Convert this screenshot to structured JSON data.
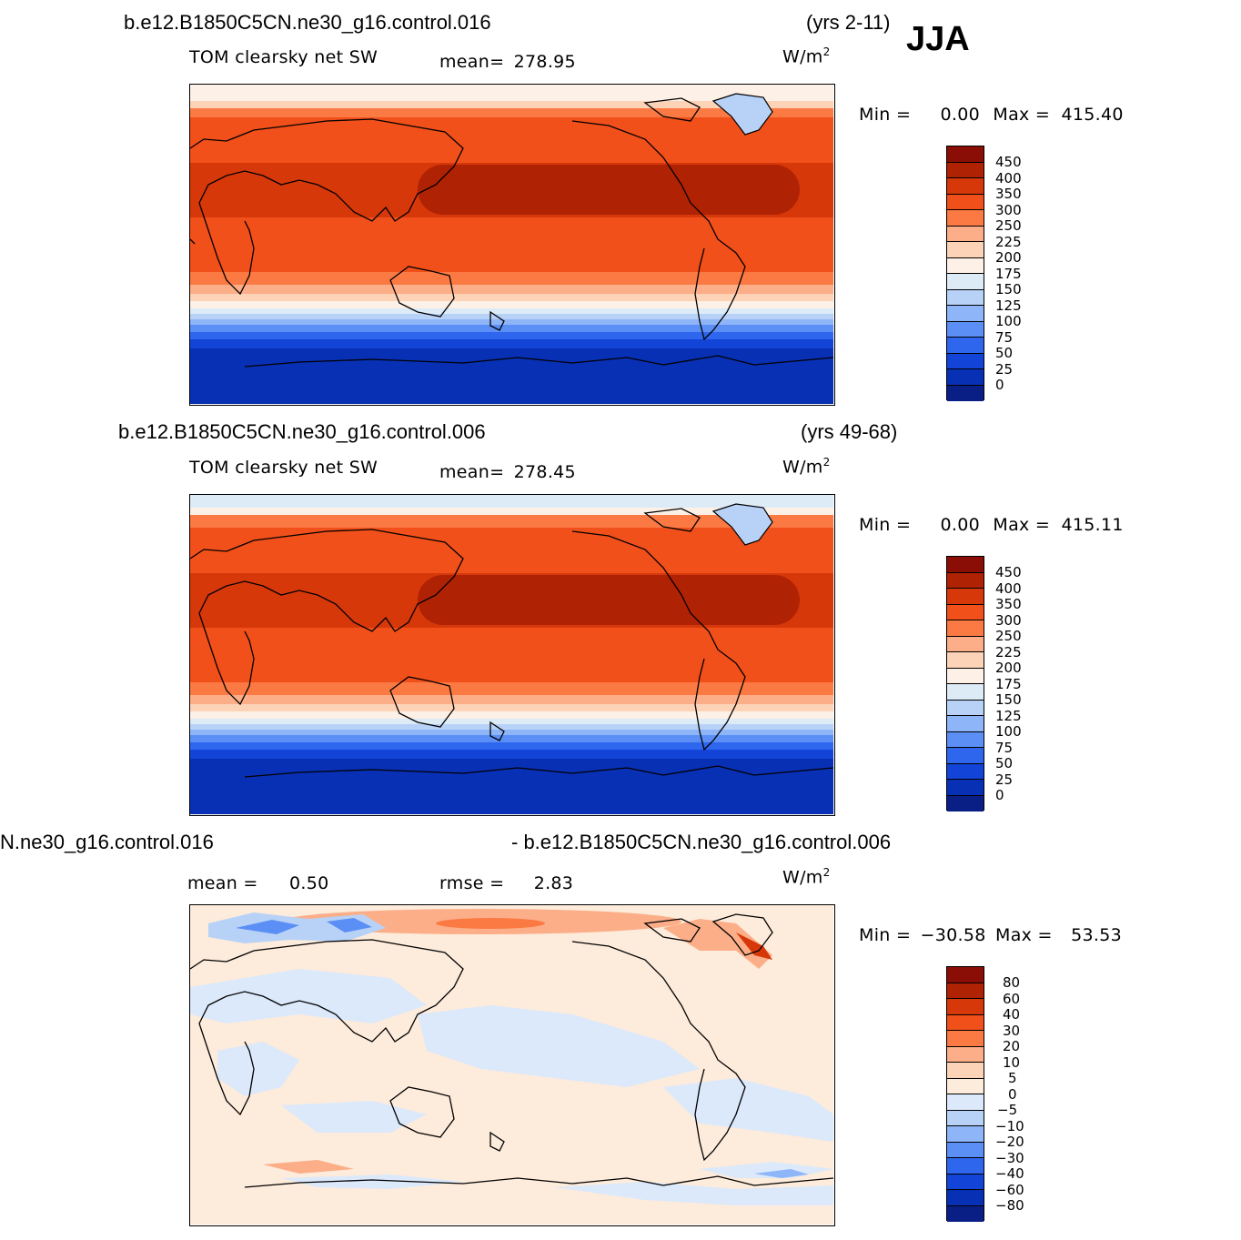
{
  "season": "JJA",
  "units": "W/m",
  "units_sup": "2",
  "panels": [
    {
      "case": "b.e12.B1850C5CN.ne30_g16.control.016",
      "years": "(yrs 2-11)",
      "variable": "TOM clearsky net SW",
      "mean_label": "mean=",
      "mean_value": "278.95",
      "min_label": "Min =",
      "min_value": "0.00",
      "max_label": "Max =",
      "max_value": "415.40"
    },
    {
      "case": "b.e12.B1850C5CN.ne30_g16.control.006",
      "years": "(yrs 49-68)",
      "variable": "TOM clearsky net SW",
      "mean_label": "mean=",
      "mean_value": "278.45",
      "min_label": "Min =",
      "min_value": "0.00",
      "max_label": "Max =",
      "max_value": "415.11"
    },
    {
      "case_left": "N.ne30_g16.control.016",
      "case_right": "- b.e12.B1850C5CN.ne30_g16.control.006",
      "mean_label": "mean =",
      "mean_value": "0.50",
      "rmse_label": "rmse =",
      "rmse_value": "2.83",
      "min_label": "Min =",
      "min_value": "−30.58",
      "max_label": "Max =",
      "max_value": "53.53"
    }
  ],
  "colorbar_abs": {
    "labels": [
      "450",
      "400",
      "350",
      "300",
      "250",
      "225",
      "200",
      "175",
      "150",
      "125",
      "100",
      "75",
      "50",
      "25",
      "0"
    ],
    "colors": [
      "#8a0d06",
      "#b02204",
      "#d6380a",
      "#f2501a",
      "#fb7a44",
      "#fcae88",
      "#fdd3b8",
      "#fdf0e6",
      "#ddebf7",
      "#b8d2f7",
      "#8eb5f7",
      "#5b8ff5",
      "#2f66ee",
      "#1244d8",
      "#0830b4",
      "#0a1f86"
    ]
  },
  "colorbar_diff": {
    "labels": [
      "80",
      "60",
      "40",
      "30",
      "20",
      "10",
      "5",
      "0",
      "−5",
      "−10",
      "−20",
      "−30",
      "−40",
      "−60",
      "−80"
    ],
    "colors": [
      "#8a0d06",
      "#b02204",
      "#d6380a",
      "#f2501a",
      "#fb7a44",
      "#fcae88",
      "#fdd3b8",
      "#fdebdb",
      "#dbe9fb",
      "#b8d2f7",
      "#8eb5f7",
      "#5b8ff5",
      "#2f66ee",
      "#1244d8",
      "#0830b4",
      "#0a1f86"
    ]
  }
}
